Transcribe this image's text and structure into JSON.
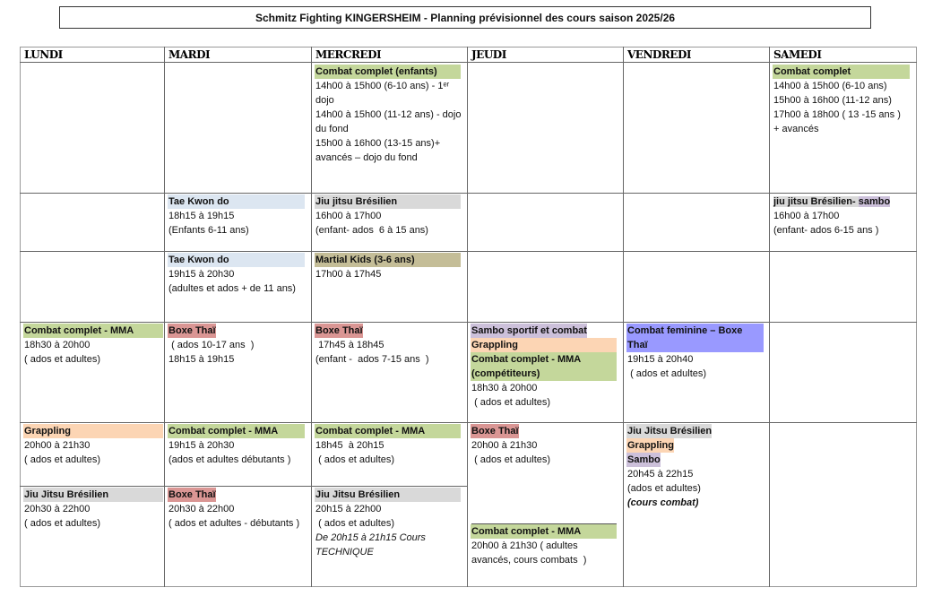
{
  "title": "Schmitz Fighting KINGERSHEIM - Planning prévisionnel des cours saison 2025/26",
  "colors": {
    "green": "#c4d79b",
    "lightblue": "#dce6f1",
    "gray": "#d9d9d9",
    "khaki": "#c4bd97",
    "red": "#da9694",
    "peach": "#fcd5b4",
    "lavender": "#ccc0da",
    "violet": "#9999ff"
  },
  "days": [
    {
      "name": "LUNDI",
      "cells": [
        [],
        [],
        [],
        [
          {
            "title": [
              {
                "text": "Combat complet - MMA",
                "color": "green"
              }
            ],
            "lines": [
              "18h30 à 20h00",
              "( ados et adultes)"
            ]
          }
        ],
        [
          {
            "title": [
              {
                "text": "Grappling",
                "color": "peach"
              }
            ],
            "lines": [
              "20h00 à 21h30",
              "( ados et adultes)"
            ]
          }
        ],
        [
          {
            "title": [
              {
                "text": "Jiu Jitsu Brésilien",
                "color": "gray"
              }
            ],
            "lines": [
              "20h30 à 22h00",
              "( ados et adultes)"
            ]
          }
        ]
      ]
    },
    {
      "name": "MARDI",
      "cells": [
        [],
        [
          {
            "title": [
              {
                "text": "Tae Kwon do",
                "color": "lightblue"
              }
            ],
            "lines": [
              "18h15 à 19h15",
              "(Enfants 6-11 ans)"
            ]
          }
        ],
        [
          {
            "title": [
              {
                "text": "Tae Kwon do",
                "color": "lightblue"
              }
            ],
            "lines": [
              "19h15 à 20h30",
              "(adultes et ados + de 11 ans)"
            ]
          }
        ],
        [
          {
            "title": [
              {
                "text": "Boxe Thaï",
                "color": "red",
                "inline": true
              }
            ],
            "lines": [
              " ( ados 10-17 ans  )",
              "18h15 à 19h15"
            ]
          }
        ],
        [
          {
            "title": [
              {
                "text": "Combat complet - MMA",
                "color": "green"
              }
            ],
            "lines": [
              "19h15 à 20h30",
              "(ados et adultes débutants )"
            ]
          }
        ],
        [
          {
            "title": [
              {
                "text": "Boxe Thaï",
                "color": "red",
                "inline": true
              }
            ],
            "lines": [
              "20h30 à 22h00",
              "( ados et adultes - débutants )"
            ]
          }
        ]
      ]
    },
    {
      "name": "MERCREDI",
      "cells": [
        [
          {
            "title": [
              {
                "text": "Combat complet (enfants)",
                "color": "green"
              }
            ],
            "lines": [
              "14h00 à 15h00 (6-10 ans) - 1ᵉʳ dojo",
              "14h00 à 15h00 (11-12 ans) - dojo du fond",
              "15h00 à 16h00 (13-15 ans)+ avancés – dojo du fond"
            ]
          }
        ],
        [
          {
            "title": [
              {
                "text": "Jiu jitsu Brésilien",
                "color": "gray"
              }
            ],
            "lines": [
              "16h00 à 17h00",
              "(enfant- ados  6 à 15 ans)"
            ]
          }
        ],
        [
          {
            "title": [
              {
                "text": "Martial  Kids (3-6 ans)",
                "color": "khaki"
              }
            ],
            "lines": [
              "17h00 à 17h45"
            ]
          }
        ],
        [
          {
            "title": [
              {
                "text": "Boxe Thaï",
                "color": "red",
                "inline": true
              }
            ],
            "lines": [
              " 17h45 à 18h45",
              "(enfant -  ados 7-15 ans  )"
            ]
          }
        ],
        [
          {
            "title": [
              {
                "text": "Combat complet - MMA",
                "color": "green"
              }
            ],
            "lines": [
              "18h45  à 20h15",
              " ( ados et adultes)"
            ]
          }
        ],
        [
          {
            "title": [
              {
                "text": "Jiu Jitsu Brésilien",
                "color": "gray"
              }
            ],
            "lines": [
              "20h15 à 22h00",
              " ( ados et adultes)"
            ],
            "italic": [
              "De 20h15 à 21h15 Cours TECHNIQUE"
            ]
          }
        ]
      ]
    },
    {
      "name": "JEUDI",
      "cells": [
        [],
        [],
        [],
        [
          {
            "title": [
              {
                "text": "Sambo sportif et combat",
                "color": "lavender",
                "inline": true
              },
              {
                "text": "Grappling",
                "color": "peach"
              },
              {
                "text": "Combat complet - MMA (compétiteurs)",
                "color": "green"
              }
            ],
            "lines": [
              "18h30 à 20h00",
              " ( ados et adultes)"
            ]
          }
        ],
        [
          {
            "title": [
              {
                "text": " Boxe Thaï",
                "color": "red",
                "inline": true
              }
            ],
            "lines": [
              "20h00 à 21h30",
              " ( ados et adultes)"
            ]
          },
          {
            "title": [
              {
                "text": "Combat complet - MMA",
                "color": "green"
              }
            ],
            "lines": [
              "20h00 à 21h30 ( adultes avancés, cours combats  )"
            ]
          }
        ]
      ]
    },
    {
      "name": "VENDREDI",
      "cells": [
        [],
        [],
        [],
        [
          {
            "title": [
              {
                "text": " Combat feminine – Boxe Thaï",
                "color": "violet"
              }
            ],
            "lines": [
              "19h15 à 20h40",
              " ( ados et adultes)"
            ]
          }
        ],
        [
          {
            "title": [
              {
                "text": "Jiu Jitsu Brésilien",
                "color": "gray",
                "inline": true
              },
              {
                "text": "Grappling",
                "color": "peach",
                "inline": true
              },
              {
                "text": "Sambo",
                "color": "lavender",
                "inline": true
              }
            ],
            "lines": [
              "20h45 à 22h15",
              "(ados et adultes)"
            ],
            "bolditalic": [
              "(cours combat)"
            ]
          }
        ]
      ]
    },
    {
      "name": "SAMEDI",
      "cells": [
        [
          {
            "title": [
              {
                "text": "Combat complet",
                "color": "green"
              }
            ],
            "lines": [
              "14h00 à 15h00 (6-10 ans)",
              "15h00 à 16h00 (11-12 ans)",
              "17h00 à 18h00 ( 13 -15 ans )",
              "+ avancés"
            ]
          }
        ],
        [
          {
            "title": [
              {
                "text": "jiu jitsu Brésilien-  ",
                "color": "gray",
                "inline": true,
                "same": true
              },
              {
                "text": " sambo",
                "color": "lavender",
                "inline": true,
                "same": true
              }
            ],
            "lines": [
              "16h00 à 17h00",
              "(enfant- ados 6-15 ans )"
            ]
          }
        ],
        [],
        [],
        []
      ]
    }
  ]
}
